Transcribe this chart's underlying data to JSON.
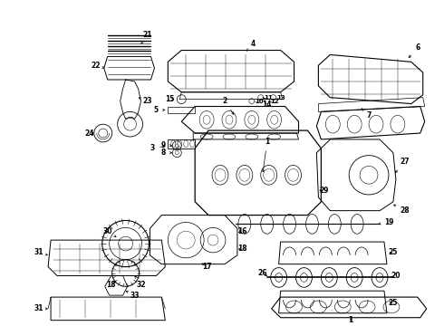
{
  "background_color": "#ffffff",
  "fig_width": 4.9,
  "fig_height": 3.6,
  "dpi": 100,
  "line_color": "#000000",
  "label_fontsize": 5.5
}
